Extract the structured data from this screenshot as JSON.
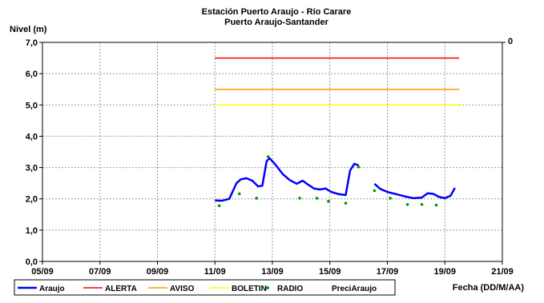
{
  "chart_data": {
    "type": "line",
    "title": "Estación Puerto Araujo - Río Carare",
    "subtitle": "Puerto Araujo-Santander",
    "ylabel": "Nivel (m)",
    "xlabel": "Fecha (DD/M/AA)",
    "ylim": [
      0,
      7
    ],
    "xlim": [
      "05/09",
      "21/09"
    ],
    "y2_tick": "0",
    "y_ticks": [
      "0,0",
      "1,0",
      "2,0",
      "3,0",
      "4,0",
      "5,0",
      "6,0",
      "7,0"
    ],
    "x_ticks": [
      "05/09",
      "07/09",
      "09/09",
      "11/09",
      "13/09",
      "15/09",
      "17/09",
      "19/09",
      "21/09"
    ],
    "grid": true,
    "legend_position": "bottom",
    "colors": {
      "araujo": "#0000ff",
      "alerta": "#ff0000",
      "aviso": "#ff9900",
      "boletin": "#ffff00",
      "radio": "#009900"
    },
    "series": [
      {
        "name": "Araujo",
        "style": "line",
        "segments": [
          [
            [
              11.0,
              1.95
            ],
            [
              11.25,
              1.94
            ],
            [
              11.5,
              2.0
            ],
            [
              11.75,
              2.5
            ],
            [
              11.9,
              2.62
            ],
            [
              12.1,
              2.66
            ],
            [
              12.3,
              2.58
            ],
            [
              12.5,
              2.4
            ],
            [
              12.65,
              2.42
            ],
            [
              12.8,
              3.2
            ],
            [
              12.9,
              3.3
            ],
            [
              13.1,
              3.1
            ],
            [
              13.35,
              2.8
            ],
            [
              13.6,
              2.6
            ],
            [
              13.85,
              2.48
            ],
            [
              14.05,
              2.58
            ],
            [
              14.25,
              2.45
            ],
            [
              14.45,
              2.33
            ],
            [
              14.65,
              2.3
            ],
            [
              14.85,
              2.33
            ],
            [
              15.05,
              2.22
            ],
            [
              15.3,
              2.15
            ],
            [
              15.55,
              2.12
            ],
            [
              15.7,
              2.9
            ],
            [
              15.85,
              3.12
            ],
            [
              16.0,
              3.07
            ]
          ],
          [
            [
              16.55,
              2.48
            ],
            [
              16.75,
              2.32
            ],
            [
              17.0,
              2.22
            ],
            [
              17.3,
              2.15
            ],
            [
              17.6,
              2.08
            ],
            [
              17.9,
              2.02
            ],
            [
              18.2,
              2.04
            ],
            [
              18.4,
              2.18
            ],
            [
              18.6,
              2.16
            ],
            [
              18.8,
              2.06
            ],
            [
              19.0,
              2.02
            ],
            [
              19.2,
              2.1
            ],
            [
              19.35,
              2.35
            ]
          ]
        ]
      },
      {
        "name": "ALERTA",
        "style": "line",
        "x": [
          11.0,
          19.5
        ],
        "values": [
          6.5,
          6.5
        ]
      },
      {
        "name": "AVISO",
        "style": "line",
        "x": [
          11.0,
          19.5
        ],
        "values": [
          5.5,
          5.5
        ]
      },
      {
        "name": "BOLETIN",
        "style": "line",
        "x": [
          11.0,
          19.5
        ],
        "values": [
          5.0,
          5.0
        ]
      },
      {
        "name": "RADIO",
        "style": "points",
        "x": [
          11.15,
          11.85,
          12.45,
          12.85,
          13.95,
          14.55,
          14.95,
          15.55,
          16.0,
          16.55,
          17.1,
          17.7,
          18.2,
          18.7
        ],
        "values": [
          1.78,
          2.16,
          2.02,
          3.35,
          2.02,
          2.02,
          1.92,
          1.86,
          3.02,
          2.26,
          2.02,
          1.82,
          1.82,
          1.8
        ]
      },
      {
        "name": "PreciAraujo",
        "style": "none",
        "x": [],
        "values": []
      }
    ]
  }
}
